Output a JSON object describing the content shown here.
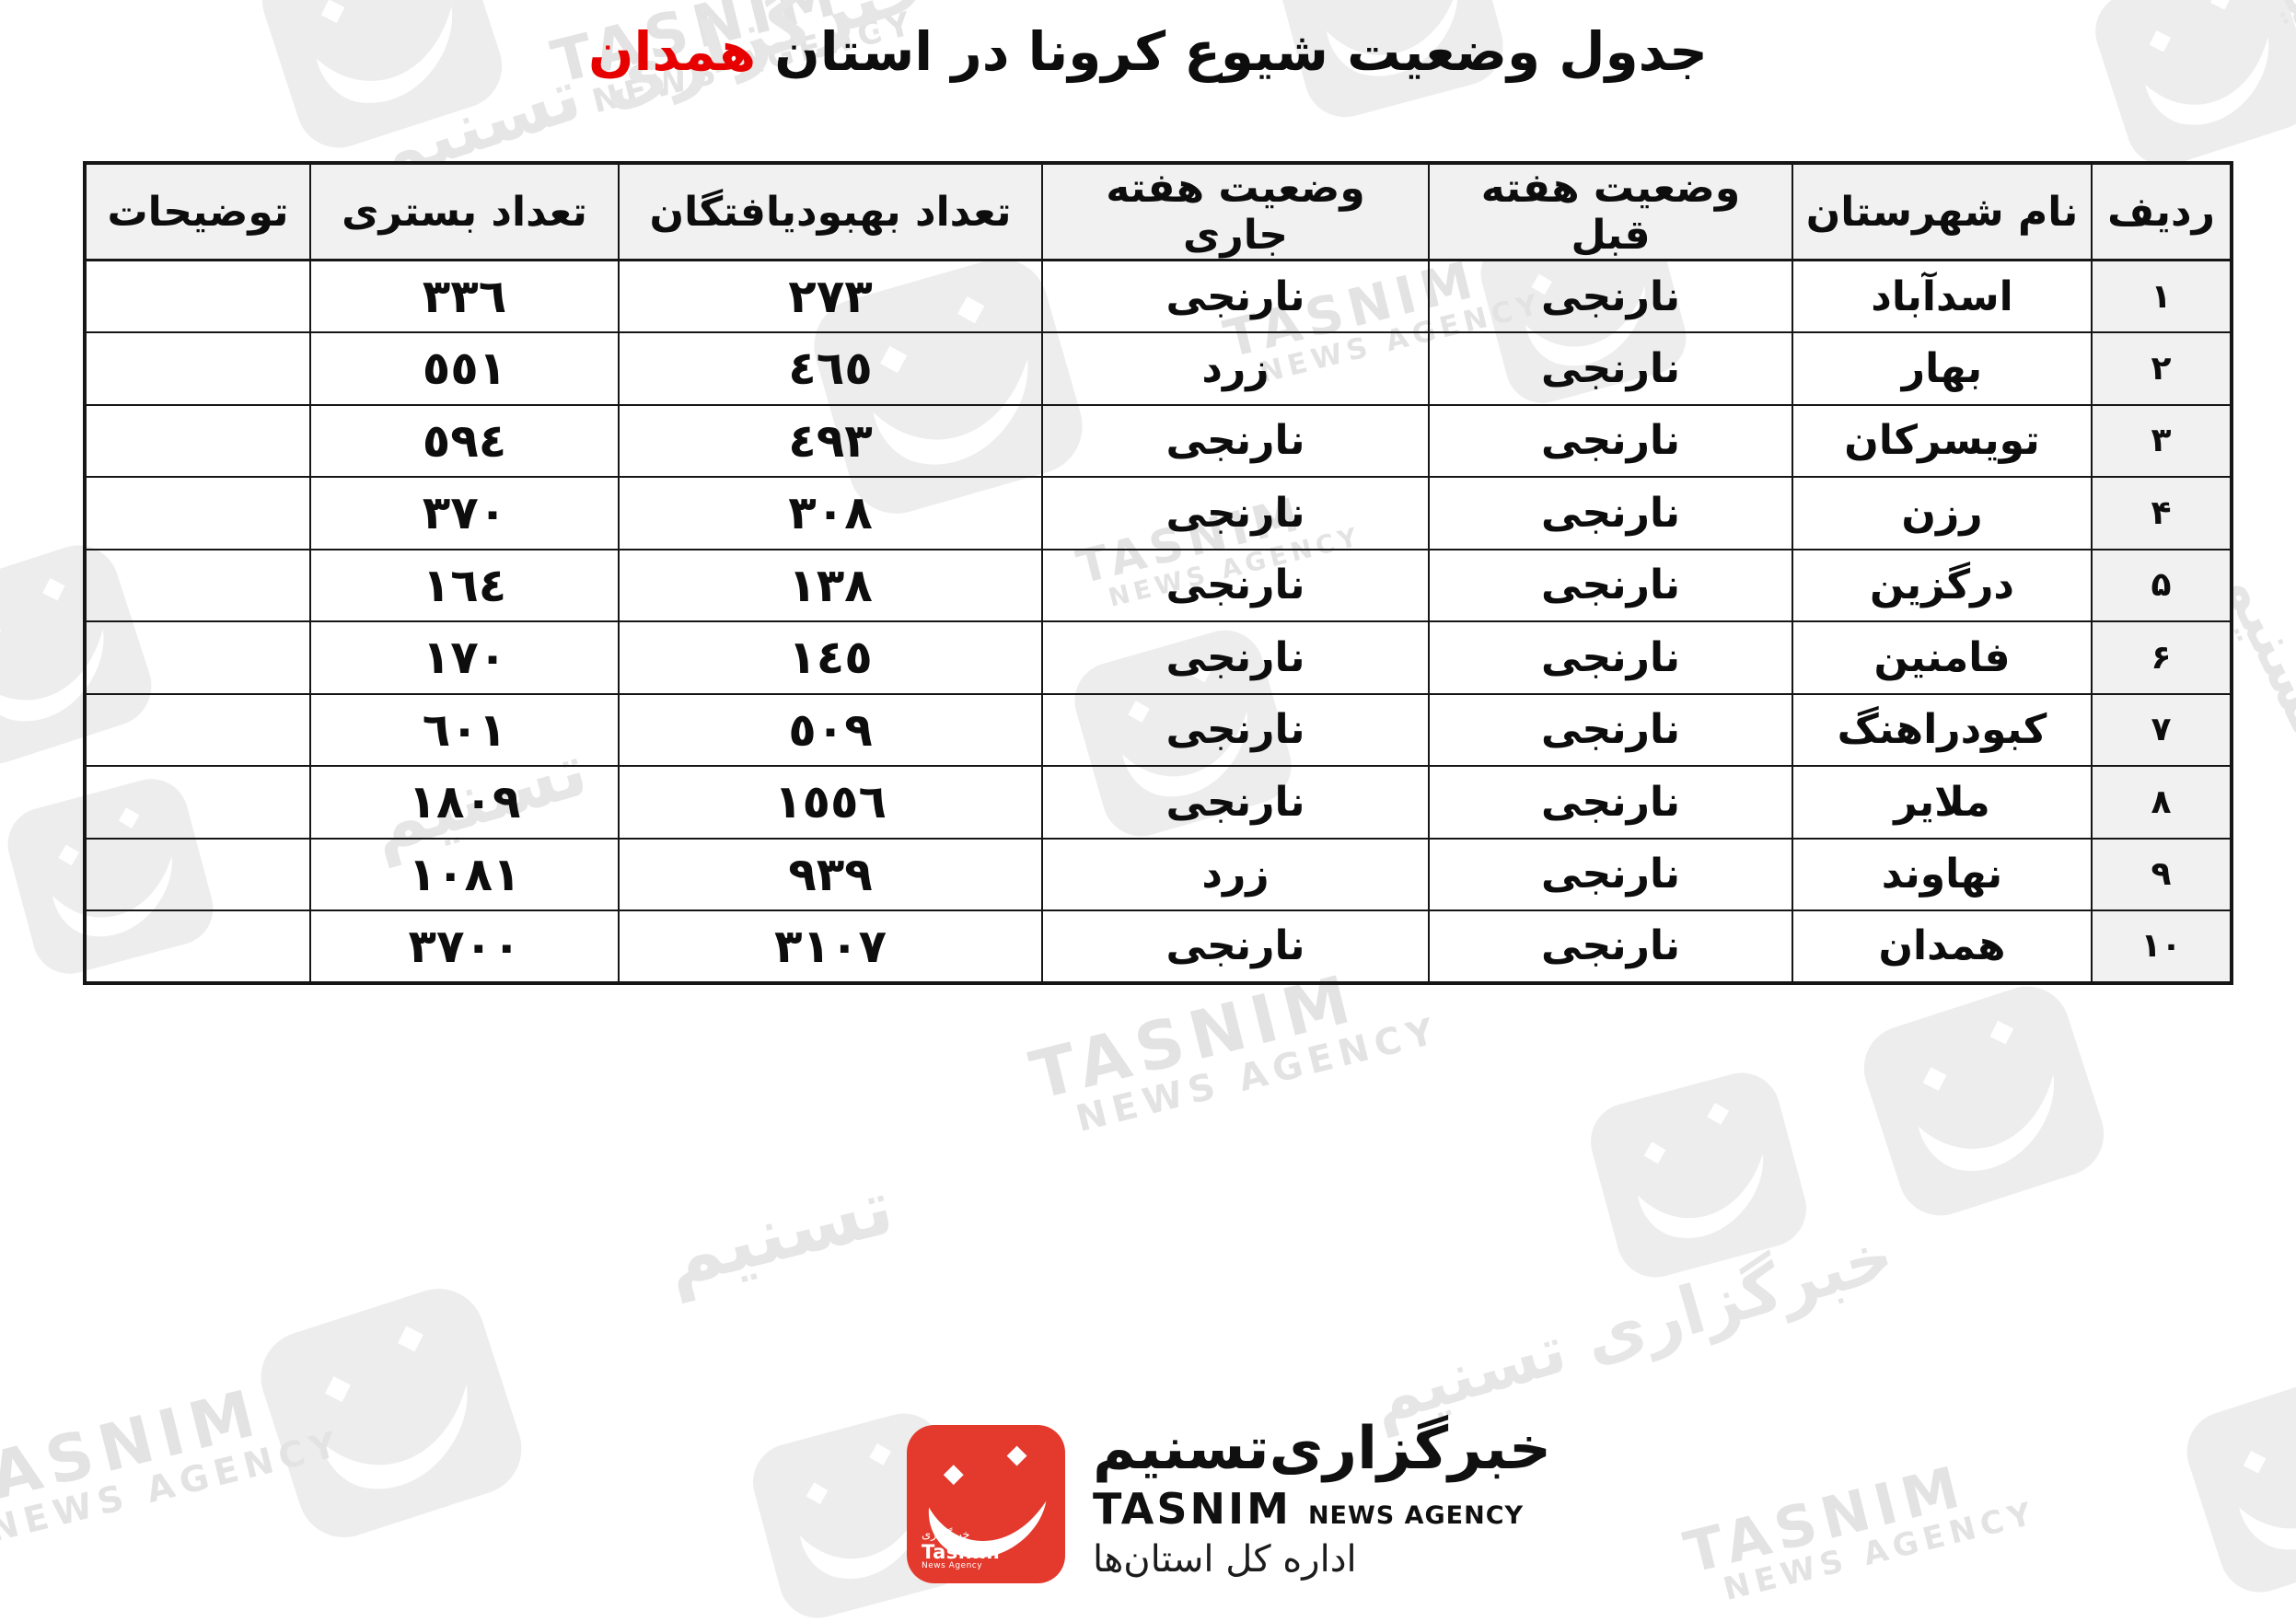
{
  "title": {
    "text": "جدول وضعیت شیوع کرونا در استان",
    "highlight": "همدان",
    "highlight_color": "#e60000"
  },
  "table": {
    "headers": [
      "ردیف",
      "نام شهرستان",
      "وضعیت هفته قبل",
      "وضعیت هفته جاری",
      "تعداد بهبودیافتگان",
      "تعداد بستری",
      "توضیحات"
    ],
    "rows": [
      {
        "no": "۱",
        "county": "اسدآباد",
        "prev_week": "نارنجی",
        "curr_week": "نارنجی",
        "recovered": "٢٧٣",
        "hospitalized": "٣٣٦",
        "notes": ""
      },
      {
        "no": "۲",
        "county": "بهار",
        "prev_week": "نارنجی",
        "curr_week": "زرد",
        "recovered": "٤٦٥",
        "hospitalized": "٥٥١",
        "notes": ""
      },
      {
        "no": "۳",
        "county": "تویسرکان",
        "prev_week": "نارنجی",
        "curr_week": "نارنجی",
        "recovered": "٤٩٣",
        "hospitalized": "٥٩٤",
        "notes": ""
      },
      {
        "no": "۴",
        "county": "رزن",
        "prev_week": "نارنجی",
        "curr_week": "نارنجی",
        "recovered": "٣٠٨",
        "hospitalized": "٣٧٠",
        "notes": ""
      },
      {
        "no": "۵",
        "county": "درگزین",
        "prev_week": "نارنجی",
        "curr_week": "نارنجی",
        "recovered": "١٣٨",
        "hospitalized": "١٦٤",
        "notes": ""
      },
      {
        "no": "۶",
        "county": "فامنین",
        "prev_week": "نارنجی",
        "curr_week": "نارنجی",
        "recovered": "١٤٥",
        "hospitalized": "١٧٠",
        "notes": ""
      },
      {
        "no": "۷",
        "county": "کبودراهنگ",
        "prev_week": "نارنجی",
        "curr_week": "نارنجی",
        "recovered": "٥٠٩",
        "hospitalized": "٦٠١",
        "notes": ""
      },
      {
        "no": "۸",
        "county": "ملایر",
        "prev_week": "نارنجی",
        "curr_week": "نارنجی",
        "recovered": "١٥٥٦",
        "hospitalized": "١٨٠٩",
        "notes": ""
      },
      {
        "no": "۹",
        "county": "نهاوند",
        "prev_week": "نارنجی",
        "curr_week": "زرد",
        "recovered": "٩٣٩",
        "hospitalized": "١٠٨١",
        "notes": ""
      },
      {
        "no": "۱۰",
        "county": "همدان",
        "prev_week": "نارنجی",
        "curr_week": "نارنجی",
        "recovered": "٣١٠٧",
        "hospitalized": "٣٧٠٠",
        "notes": ""
      }
    ]
  },
  "footer_logo": {
    "persian_name": "خبرگزاری‌تسنیم",
    "latin_name": "TASNIM",
    "latin_sub": "NEWS AGENCY",
    "department": "اداره کل استان‌ها",
    "icon_small_fa": "خبرگزاری",
    "icon_small_en": "Tasnim",
    "icon_small_sub": "News Agency",
    "brand_red": "#e4392d"
  },
  "watermark": {
    "en_line1": "TASNIM",
    "en_line2": "NEWS AGENCY",
    "fa": "خبرگزاری تسنیم",
    "fa_short": "تسنیم"
  }
}
